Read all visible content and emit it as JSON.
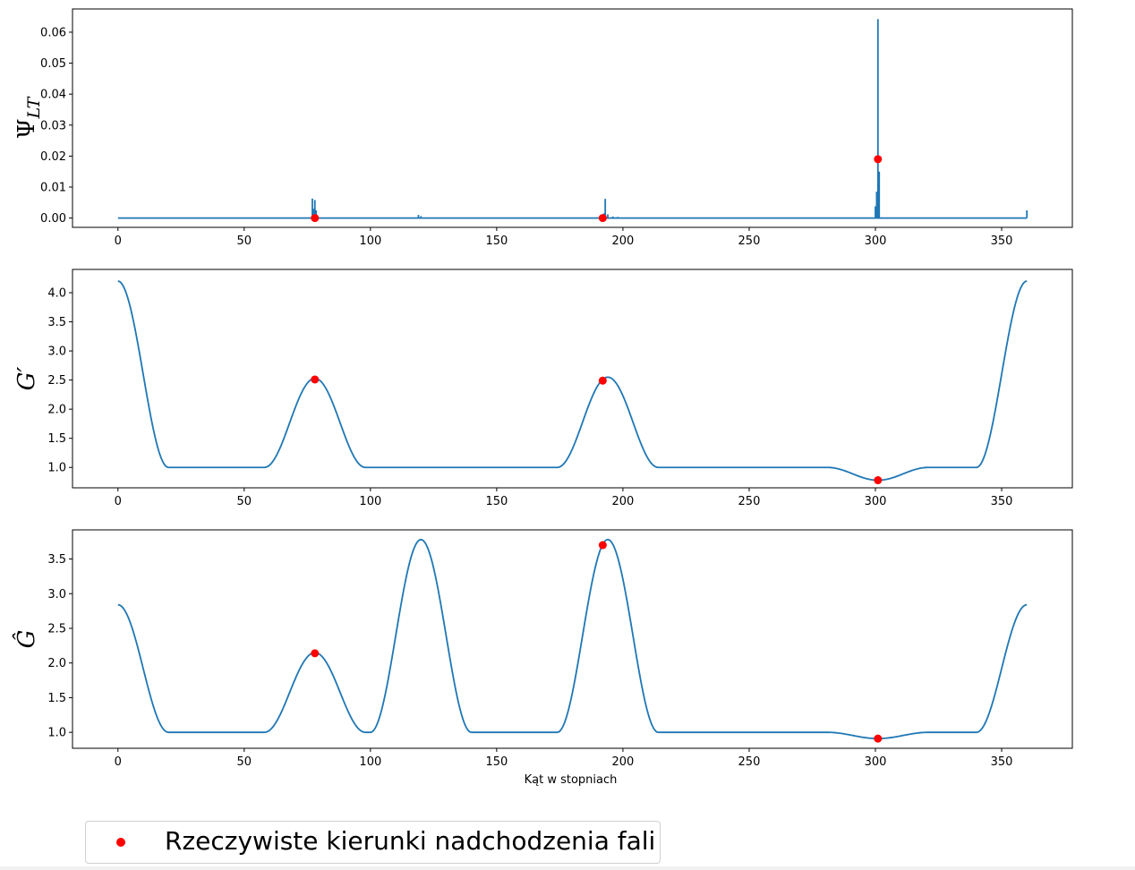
{
  "chart_data": [
    {
      "type": "line",
      "ylabel": "Ψ_LT",
      "xlim": [
        -18,
        378
      ],
      "ylim": [
        -0.003,
        0.0675
      ],
      "xticks": [
        0,
        50,
        100,
        150,
        200,
        250,
        300,
        350
      ],
      "yticks": [
        0.0,
        0.01,
        0.02,
        0.03,
        0.04,
        0.05,
        0.06
      ],
      "ytick_labels": [
        "0.00",
        "0.01",
        "0.02",
        "0.03",
        "0.04",
        "0.05",
        "0.06"
      ],
      "line_color": "#1f77b4",
      "series": [
        {
          "kind": "spikes",
          "baseline": 0,
          "x_range": [
            0,
            360
          ],
          "spikes": [
            [
              77,
              0.0063
            ],
            [
              77.5,
              0.003
            ],
            [
              78,
              0.0058
            ],
            [
              78.5,
              0.0025
            ],
            [
              119,
              0.001
            ],
            [
              120,
              0.0006
            ],
            [
              192.5,
              0.0015
            ],
            [
              193,
              0.0062
            ],
            [
              194,
              0.0012
            ],
            [
              196,
              0.0005
            ],
            [
              198,
              0.0004
            ],
            [
              300,
              0.0038
            ],
            [
              300.5,
              0.0085
            ],
            [
              301,
              0.0642
            ],
            [
              301.5,
              0.015
            ],
            [
              360,
              0.0025
            ]
          ]
        }
      ],
      "markers": {
        "x": [
          78,
          192,
          301
        ],
        "y": [
          0.0,
          0.0,
          0.019
        ],
        "color": "#ff0000"
      }
    },
    {
      "type": "line",
      "ylabel": "G′",
      "xlim": [
        -18,
        378
      ],
      "ylim": [
        0.65,
        4.4
      ],
      "xticks": [
        0,
        50,
        100,
        150,
        200,
        250,
        300,
        350
      ],
      "yticks": [
        1.0,
        1.5,
        2.0,
        2.5,
        3.0,
        3.5,
        4.0
      ],
      "ytick_labels": [
        "1.0",
        "1.5",
        "2.0",
        "2.5",
        "3.0",
        "3.5",
        "4.0"
      ],
      "line_color": "#1f77b4",
      "series": [
        {
          "kind": "bumps",
          "baseline": 1.0,
          "bumps": [
            {
              "center": 0,
              "height": 3.2,
              "half_width": 20
            },
            {
              "center": 360,
              "height": 3.2,
              "half_width": 20
            },
            {
              "center": 78,
              "height": 1.53,
              "half_width": 20
            },
            {
              "center": 194,
              "height": 1.55,
              "half_width": 20
            },
            {
              "center": 301,
              "height": -0.22,
              "half_width": 20
            }
          ]
        }
      ],
      "markers": {
        "x": [
          78,
          192,
          301
        ],
        "y": [
          2.51,
          2.49,
          0.78
        ],
        "color": "#ff0000"
      }
    },
    {
      "type": "line",
      "ylabel": "Ĝ",
      "xlabel": "Kąt w stopniach",
      "xlim": [
        -18,
        378
      ],
      "ylim": [
        0.77,
        3.92
      ],
      "xticks": [
        0,
        50,
        100,
        150,
        200,
        250,
        300,
        350
      ],
      "yticks": [
        1.0,
        1.5,
        2.0,
        2.5,
        3.0,
        3.5
      ],
      "ytick_labels": [
        "1.0",
        "1.5",
        "2.0",
        "2.5",
        "3.0",
        "3.5"
      ],
      "line_color": "#1f77b4",
      "series": [
        {
          "kind": "bumps",
          "baseline": 1.0,
          "bumps": [
            {
              "center": 0,
              "height": 1.84,
              "half_width": 20
            },
            {
              "center": 360,
              "height": 1.84,
              "half_width": 20
            },
            {
              "center": 78,
              "height": 1.15,
              "half_width": 20
            },
            {
              "center": 120,
              "height": 2.78,
              "half_width": 20
            },
            {
              "center": 194,
              "height": 2.78,
              "half_width": 20
            },
            {
              "center": 301,
              "height": -0.09,
              "half_width": 20
            }
          ]
        }
      ],
      "markers": {
        "x": [
          78,
          192,
          301
        ],
        "y": [
          2.14,
          3.7,
          0.91
        ],
        "color": "#ff0000"
      }
    }
  ],
  "legend": {
    "label": "Rzeczywiste kierunki nadchodzenia fali",
    "marker_color": "#ff0000",
    "placement": "bottom-left"
  }
}
